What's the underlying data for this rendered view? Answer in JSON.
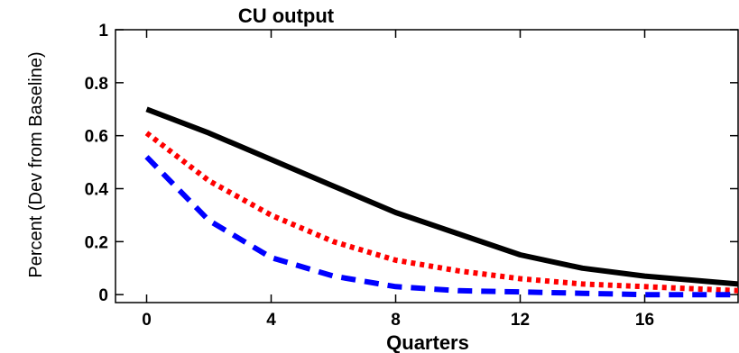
{
  "chart_data": {
    "type": "line",
    "title": "CU output",
    "xlabel": "Quarters",
    "ylabel": "Percent (Dev from Baseline)",
    "xlim": [
      -1,
      19
    ],
    "ylim": [
      -0.03,
      1.0
    ],
    "xticks": [
      0,
      4,
      8,
      12,
      16
    ],
    "yticks": [
      0,
      0.2,
      0.4,
      0.6,
      0.8,
      1
    ],
    "ytick_labels": [
      "0",
      "0.2",
      "0.4",
      "0.6",
      "0.8",
      "1"
    ],
    "grid": false,
    "x": [
      0,
      2,
      4,
      6,
      8,
      10,
      12,
      14,
      16,
      18,
      19
    ],
    "series": [
      {
        "color": "#000000",
        "style": "solid",
        "values": [
          0.7,
          0.61,
          0.51,
          0.41,
          0.31,
          0.23,
          0.15,
          0.1,
          0.07,
          0.05,
          0.04
        ]
      },
      {
        "color": "#ff0000",
        "style": "dotted",
        "values": [
          0.61,
          0.43,
          0.3,
          0.2,
          0.13,
          0.09,
          0.06,
          0.04,
          0.03,
          0.02,
          0.015
        ]
      },
      {
        "color": "#0000ff",
        "style": "dashed",
        "values": [
          0.52,
          0.28,
          0.14,
          0.07,
          0.03,
          0.015,
          0.01,
          0.005,
          0.0,
          0.0,
          0.0
        ]
      }
    ]
  }
}
